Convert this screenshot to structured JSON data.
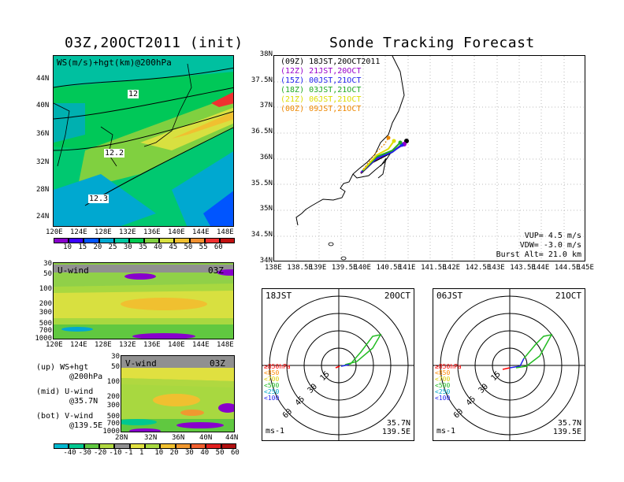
{
  "titles": {
    "left": "03Z,20OCT2011 (init)",
    "right": "Sonde Tracking Forecast"
  },
  "ws_map": {
    "label": "WS(m/s)+hgt(km)@200hPa",
    "lat_labels": [
      "44N",
      "40N",
      "36N",
      "32N",
      "28N",
      "24N"
    ],
    "lon_labels": [
      "120E",
      "124E",
      "128E",
      "132E",
      "136E",
      "140E",
      "144E",
      "148E"
    ],
    "contour_labels": [
      "12",
      "12.2",
      "12.3"
    ],
    "colorbar_values": [
      "10",
      "15",
      "20",
      "25",
      "30",
      "35",
      "40",
      "45",
      "50",
      "55",
      "60"
    ],
    "colorbar_colors": [
      "#8800cc",
      "#3b00ff",
      "#0055ff",
      "#00a8d0",
      "#00c8a0",
      "#00c850",
      "#80d040",
      "#d8e040",
      "#f0c030",
      "#f09030",
      "#f03030",
      "#c01010"
    ]
  },
  "uwind": {
    "label": "U-wind",
    "time": "03Z",
    "p_labels": [
      "30",
      "50",
      "100",
      "200",
      "300",
      "500",
      "700",
      "1000"
    ],
    "lon_labels": [
      "120E",
      "124E",
      "128E",
      "132E",
      "136E",
      "140E",
      "144E",
      "148E"
    ]
  },
  "vwind": {
    "label": "V-wind",
    "time": "03Z",
    "p_labels": [
      "30",
      "50",
      "100",
      "200",
      "300",
      "500",
      "700",
      "1000"
    ],
    "lat_labels": [
      "28N",
      "32N",
      "36N",
      "40N",
      "44N"
    ],
    "colorbar_values": [
      "-40",
      "-30",
      "-20",
      "-10",
      "-1",
      "1",
      "10",
      "20",
      "30",
      "40",
      "50",
      "60"
    ],
    "colorbar_colors": [
      "#00b8d0",
      "#00c890",
      "#60c840",
      "#b0d840",
      "#909090",
      "#e0e040",
      "#a8d840",
      "#f0c030",
      "#f09830",
      "#f06030",
      "#e02020",
      "#b01010"
    ]
  },
  "legend_notes": [
    {
      "line1": "(up) WS+hgt",
      "line2": "@200hPa"
    },
    {
      "line1": "(mid) U-wind",
      "line2": "@35.7N"
    },
    {
      "line1": "(bot) V-wind",
      "line2": "@139.5E"
    }
  ],
  "track_map": {
    "lat_labels": [
      "38N",
      "37.5N",
      "37N",
      "36.5N",
      "36N",
      "35.5N",
      "35N",
      "34.5N",
      "34N"
    ],
    "lon_labels": [
      "138E",
      "138.5E",
      "139E",
      "139.5E",
      "140E",
      "140.5E",
      "141E",
      "141.5E",
      "142E",
      "142.5E",
      "143E",
      "143.5E",
      "144E",
      "144.5E",
      "145E"
    ],
    "launches": [
      {
        "utc": "(09Z)",
        "jst": "18JST,20OCT2011",
        "color": "#000000"
      },
      {
        "utc": "(12Z)",
        "jst": "21JST,20OCT",
        "color": "#9900cc"
      },
      {
        "utc": "(15Z)",
        "jst": "00JST,21OCT",
        "color": "#2222ee"
      },
      {
        "utc": "(18Z)",
        "jst": "03JST,21OCT",
        "color": "#22aa22"
      },
      {
        "utc": "(21Z)",
        "jst": "06JST,21OCT",
        "color": "#dddd00"
      },
      {
        "utc": "(00Z)",
        "jst": "09JST,21OCT",
        "color": "#ee8800"
      }
    ],
    "params": [
      "VUP= 4.5 m/s",
      "VDW= -3.0 m/s",
      "Burst Alt= 21.0 km"
    ]
  },
  "hodographs": [
    {
      "time": "18JST",
      "date": "20OCT",
      "ring_labels": [
        "15",
        "30",
        "45",
        "60"
      ],
      "unit": "ms-1",
      "lat": "35.7N",
      "lon": "139.5E",
      "legend": [
        {
          "t": "≥850hPa",
          "c": "#ff0000"
        },
        {
          "t": "<850",
          "c": "#ff8800"
        },
        {
          "t": "<700",
          "c": "#ddcc00"
        },
        {
          "t": "<500",
          "c": "#22bb22"
        },
        {
          "t": "<250",
          "c": "#00aacc"
        },
        {
          "t": "<100",
          "c": "#2222ee"
        }
      ]
    },
    {
      "time": "06JST",
      "date": "21OCT",
      "ring_labels": [
        "15",
        "30",
        "45",
        "60"
      ],
      "unit": "ms-1",
      "lat": "35.7N",
      "lon": "139.5E",
      "legend": [
        {
          "t": "≥850hPa",
          "c": "#ff0000"
        },
        {
          "t": "<850",
          "c": "#ff8800"
        },
        {
          "t": "<700",
          "c": "#ddcc00"
        },
        {
          "t": "<500",
          "c": "#22bb22"
        },
        {
          "t": "<250",
          "c": "#00aacc"
        },
        {
          "t": "<100",
          "c": "#2222ee"
        }
      ]
    }
  ]
}
